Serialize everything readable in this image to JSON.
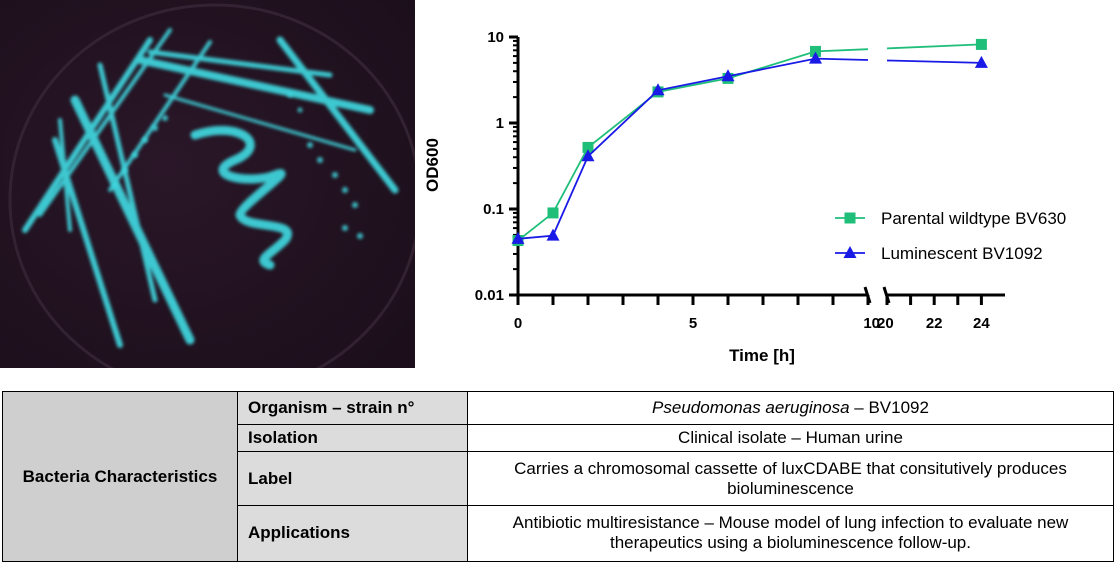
{
  "chart_data": {
    "type": "line",
    "x_axis_segments": [
      {
        "min": 0,
        "max": 10,
        "ticks": [
          0,
          5,
          10
        ],
        "minor_ticks": [
          1,
          2,
          3,
          4,
          6,
          7,
          8,
          9
        ]
      },
      {
        "min": 20,
        "max": 25,
        "ticks": [
          20,
          22,
          24
        ],
        "minor_ticks": [
          21,
          23
        ]
      }
    ],
    "xlabel": "Time [h]",
    "ylabel": "OD600",
    "yscale": "log",
    "ylim": [
      0.01,
      10
    ],
    "y_ticks": [
      {
        "value": 0.01,
        "label": "0.01"
      },
      {
        "value": 0.1,
        "label": "0.1"
      },
      {
        "value": 1,
        "label": "1"
      },
      {
        "value": 10,
        "label": "10"
      }
    ],
    "legend_position": "right",
    "series": [
      {
        "name": "Parental wildtype BV630",
        "marker": "square",
        "color": "#1fbf7a",
        "x": [
          0,
          1,
          2,
          4,
          6,
          8.5,
          24
        ],
        "y": [
          0.043,
          0.09,
          0.52,
          2.3,
          3.3,
          6.8,
          8.2
        ]
      },
      {
        "name": "Luminescent BV1092",
        "marker": "triangle",
        "color": "#1a1ae6",
        "x": [
          0,
          1,
          2,
          4,
          6,
          8.5,
          24
        ],
        "y": [
          0.045,
          0.049,
          0.41,
          2.4,
          3.5,
          5.6,
          5.0
        ]
      }
    ]
  },
  "table": {
    "group_label": "Bacteria Characteristics",
    "rows": [
      {
        "key": "Organism – strain n°",
        "species": "Pseudomonas aeruginosa",
        "strain": " – BV1092"
      },
      {
        "key": "Isolation",
        "value": "Clinical isolate – Human urine"
      },
      {
        "key": "Label",
        "value": "Carries a chromosomal cassette of luxCDABE that consitutively produces bioluminescence"
      },
      {
        "key": "Applications",
        "value": "Antibiotic multiresistance – Mouse model of lung infection to evaluate new therapeutics using a bioluminescence follow-up."
      }
    ]
  }
}
